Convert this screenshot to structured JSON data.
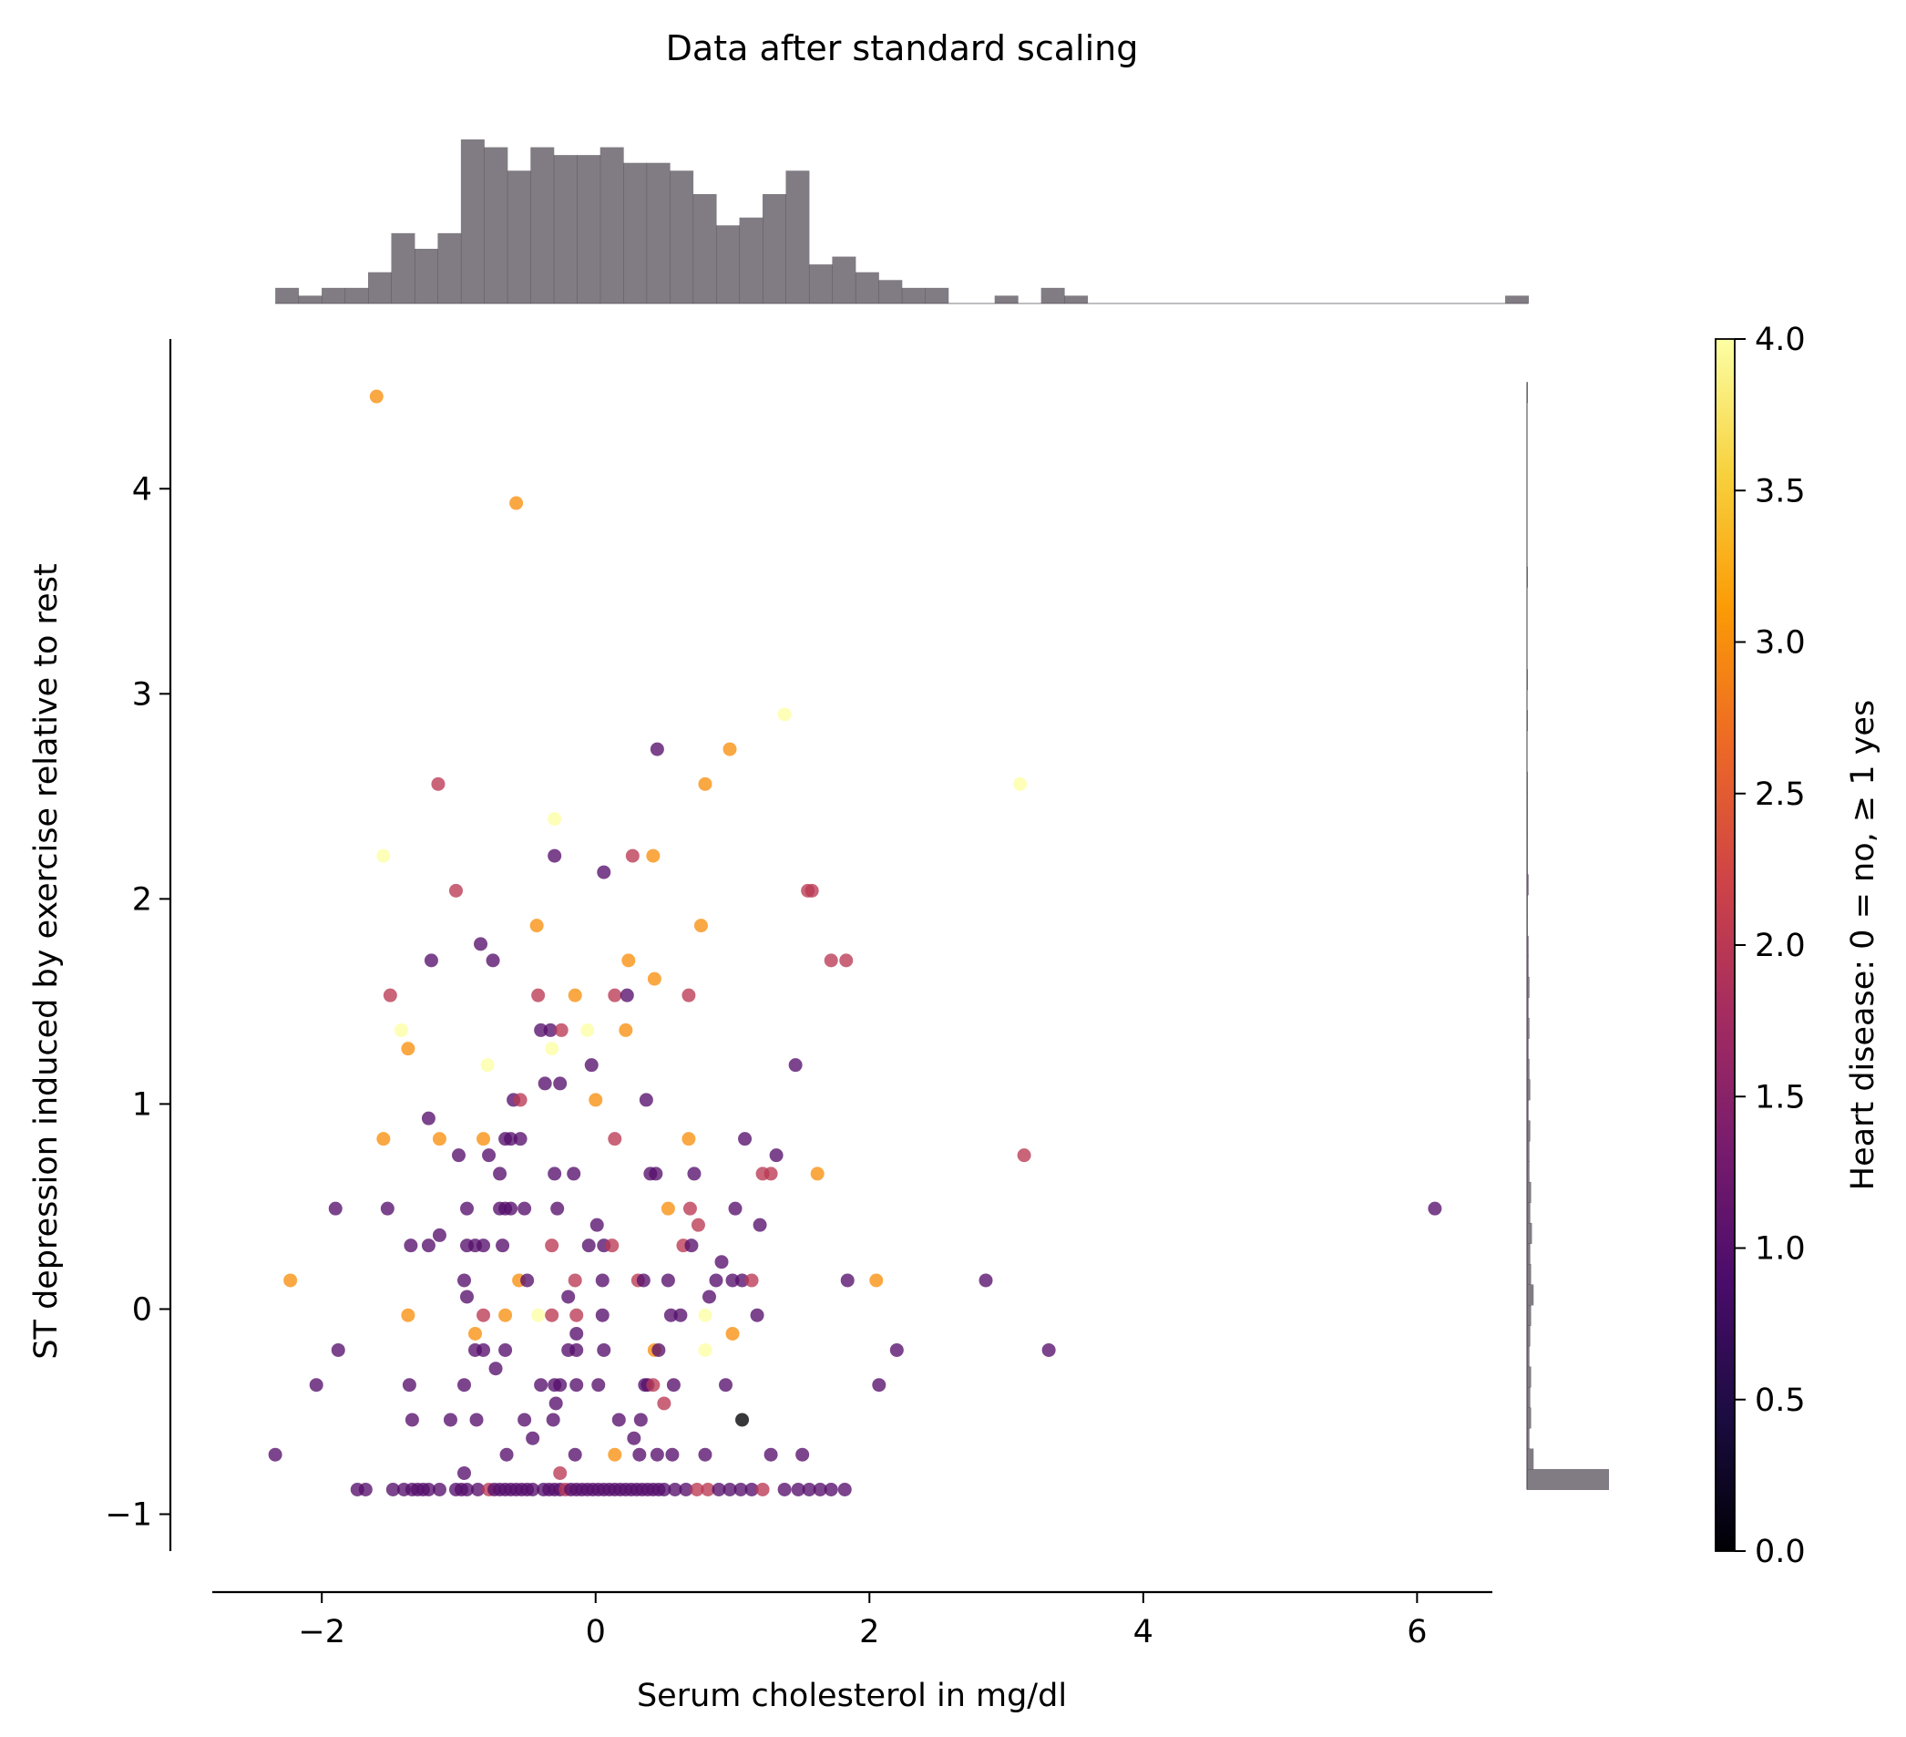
{
  "chart_data": {
    "type": "scatter",
    "title": "Data after standard scaling",
    "xlabel": "Serum cholesterol in mg/dl",
    "ylabel": "ST depression induced by exercise relative to rest",
    "colorbar_label": "Heart disease: 0 =  no,  ≥ 1 yes",
    "xlim": [
      -2.8,
      6.55
    ],
    "ylim": [
      -1.18,
      4.73
    ],
    "xticks": [
      -2,
      0,
      2,
      4,
      6
    ],
    "yticks": [
      -1,
      0,
      1,
      2,
      3,
      4
    ],
    "colorbar_ticks": [
      0.0,
      0.5,
      1.0,
      1.5,
      2.0,
      2.5,
      3.0,
      3.5,
      4.0
    ],
    "colorbar_range": [
      0,
      4
    ],
    "colormap": "inferno-like",
    "colormap_stops": [
      "#000004",
      "#1b0c41",
      "#4a0c6b",
      "#781c6d",
      "#a52c60",
      "#cf4446",
      "#ed6925",
      "#fb9b06",
      "#f7d13d",
      "#fcffa4"
    ],
    "point_alpha": 0.78,
    "marginal_color": "#4c454f",
    "grid": false,
    "points": [
      {
        "x": -1.6,
        "y": 4.45,
        "c": 3
      },
      {
        "x": -0.58,
        "y": 3.93,
        "c": 3
      },
      {
        "x": 1.38,
        "y": 2.9,
        "c": 4
      },
      {
        "x": 0.45,
        "y": 2.73,
        "c": 1
      },
      {
        "x": 0.98,
        "y": 2.73,
        "c": 3
      },
      {
        "x": 3.1,
        "y": 2.56,
        "c": 4
      },
      {
        "x": -1.15,
        "y": 2.56,
        "c": 2
      },
      {
        "x": 0.8,
        "y": 2.56,
        "c": 3
      },
      {
        "x": -0.3,
        "y": 2.39,
        "c": 4
      },
      {
        "x": -1.55,
        "y": 2.21,
        "c": 4
      },
      {
        "x": -0.3,
        "y": 2.21,
        "c": 1
      },
      {
        "x": 0.27,
        "y": 2.21,
        "c": 2
      },
      {
        "x": 0.42,
        "y": 2.21,
        "c": 3
      },
      {
        "x": 0.06,
        "y": 2.13,
        "c": 1
      },
      {
        "x": -1.02,
        "y": 2.04,
        "c": 2
      },
      {
        "x": 1.55,
        "y": 2.04,
        "c": 2
      },
      {
        "x": 1.58,
        "y": 2.04,
        "c": 2
      },
      {
        "x": -0.43,
        "y": 1.87,
        "c": 3
      },
      {
        "x": 0.77,
        "y": 1.87,
        "c": 3
      },
      {
        "x": -0.84,
        "y": 1.78,
        "c": 1
      },
      {
        "x": -1.2,
        "y": 1.7,
        "c": 1
      },
      {
        "x": -0.75,
        "y": 1.7,
        "c": 1
      },
      {
        "x": 0.24,
        "y": 1.7,
        "c": 3
      },
      {
        "x": 1.72,
        "y": 1.7,
        "c": 2
      },
      {
        "x": 1.83,
        "y": 1.7,
        "c": 2
      },
      {
        "x": 0.43,
        "y": 1.61,
        "c": 3
      },
      {
        "x": -1.5,
        "y": 1.53,
        "c": 2
      },
      {
        "x": -0.42,
        "y": 1.53,
        "c": 2
      },
      {
        "x": -0.15,
        "y": 1.53,
        "c": 3
      },
      {
        "x": 0.14,
        "y": 1.53,
        "c": 2
      },
      {
        "x": 0.23,
        "y": 1.53,
        "c": 1
      },
      {
        "x": 0.68,
        "y": 1.53,
        "c": 2
      },
      {
        "x": -1.42,
        "y": 1.36,
        "c": 4
      },
      {
        "x": -0.4,
        "y": 1.36,
        "c": 1
      },
      {
        "x": -0.33,
        "y": 1.36,
        "c": 1
      },
      {
        "x": -0.25,
        "y": 1.36,
        "c": 2
      },
      {
        "x": -0.06,
        "y": 1.36,
        "c": 4
      },
      {
        "x": 0.22,
        "y": 1.36,
        "c": 3
      },
      {
        "x": -1.37,
        "y": 1.27,
        "c": 3
      },
      {
        "x": -0.32,
        "y": 1.27,
        "c": 4
      },
      {
        "x": -0.79,
        "y": 1.19,
        "c": 4
      },
      {
        "x": -0.03,
        "y": 1.19,
        "c": 1
      },
      {
        "x": 1.46,
        "y": 1.19,
        "c": 1
      },
      {
        "x": -0.37,
        "y": 1.1,
        "c": 1
      },
      {
        "x": -0.26,
        "y": 1.1,
        "c": 1
      },
      {
        "x": -0.6,
        "y": 1.02,
        "c": 1
      },
      {
        "x": -0.55,
        "y": 1.02,
        "c": 2
      },
      {
        "x": 0.0,
        "y": 1.02,
        "c": 3
      },
      {
        "x": 0.37,
        "y": 1.02,
        "c": 1
      },
      {
        "x": -1.22,
        "y": 0.93,
        "c": 1
      },
      {
        "x": -1.55,
        "y": 0.83,
        "c": 3
      },
      {
        "x": -1.14,
        "y": 0.83,
        "c": 3
      },
      {
        "x": -0.82,
        "y": 0.83,
        "c": 3
      },
      {
        "x": -0.66,
        "y": 0.83,
        "c": 1
      },
      {
        "x": -0.62,
        "y": 0.83,
        "c": 1
      },
      {
        "x": -0.55,
        "y": 0.83,
        "c": 1
      },
      {
        "x": 0.14,
        "y": 0.83,
        "c": 2
      },
      {
        "x": 0.68,
        "y": 0.83,
        "c": 3
      },
      {
        "x": 1.09,
        "y": 0.83,
        "c": 1
      },
      {
        "x": -1.0,
        "y": 0.75,
        "c": 1
      },
      {
        "x": -0.78,
        "y": 0.75,
        "c": 1
      },
      {
        "x": 1.32,
        "y": 0.75,
        "c": 1
      },
      {
        "x": 3.13,
        "y": 0.75,
        "c": 2
      },
      {
        "x": -0.7,
        "y": 0.66,
        "c": 1
      },
      {
        "x": -0.3,
        "y": 0.66,
        "c": 1
      },
      {
        "x": -0.16,
        "y": 0.66,
        "c": 1
      },
      {
        "x": 0.4,
        "y": 0.66,
        "c": 1
      },
      {
        "x": 0.44,
        "y": 0.66,
        "c": 1
      },
      {
        "x": 0.72,
        "y": 0.66,
        "c": 1
      },
      {
        "x": 1.22,
        "y": 0.66,
        "c": 2
      },
      {
        "x": 1.28,
        "y": 0.66,
        "c": 2
      },
      {
        "x": 1.62,
        "y": 0.66,
        "c": 3
      },
      {
        "x": -1.9,
        "y": 0.49,
        "c": 1
      },
      {
        "x": -1.52,
        "y": 0.49,
        "c": 1
      },
      {
        "x": -0.94,
        "y": 0.49,
        "c": 1
      },
      {
        "x": -0.7,
        "y": 0.49,
        "c": 1
      },
      {
        "x": -0.66,
        "y": 0.49,
        "c": 1
      },
      {
        "x": -0.62,
        "y": 0.49,
        "c": 1
      },
      {
        "x": -0.52,
        "y": 0.49,
        "c": 1
      },
      {
        "x": -0.28,
        "y": 0.49,
        "c": 1
      },
      {
        "x": 0.53,
        "y": 0.49,
        "c": 3
      },
      {
        "x": 0.69,
        "y": 0.49,
        "c": 2
      },
      {
        "x": 1.02,
        "y": 0.49,
        "c": 1
      },
      {
        "x": 6.13,
        "y": 0.49,
        "c": 1
      },
      {
        "x": 0.01,
        "y": 0.41,
        "c": 1
      },
      {
        "x": 0.75,
        "y": 0.41,
        "c": 2
      },
      {
        "x": -1.14,
        "y": 0.36,
        "c": 1
      },
      {
        "x": -1.22,
        "y": 0.31,
        "c": 1
      },
      {
        "x": -1.35,
        "y": 0.31,
        "c": 1
      },
      {
        "x": -0.94,
        "y": 0.31,
        "c": 1
      },
      {
        "x": -0.88,
        "y": 0.31,
        "c": 1
      },
      {
        "x": -0.82,
        "y": 0.31,
        "c": 1
      },
      {
        "x": -0.68,
        "y": 0.31,
        "c": 1
      },
      {
        "x": -0.32,
        "y": 0.31,
        "c": 2
      },
      {
        "x": -0.05,
        "y": 0.31,
        "c": 1
      },
      {
        "x": 0.06,
        "y": 0.31,
        "c": 1
      },
      {
        "x": 0.12,
        "y": 0.31,
        "c": 2
      },
      {
        "x": 0.64,
        "y": 0.31,
        "c": 2
      },
      {
        "x": 0.7,
        "y": 0.31,
        "c": 1
      },
      {
        "x": 1.2,
        "y": 0.41,
        "c": 1
      },
      {
        "x": 0.92,
        "y": 0.23,
        "c": 1
      },
      {
        "x": -2.23,
        "y": 0.14,
        "c": 3
      },
      {
        "x": -0.96,
        "y": 0.14,
        "c": 1
      },
      {
        "x": -0.56,
        "y": 0.14,
        "c": 3
      },
      {
        "x": -0.5,
        "y": 0.14,
        "c": 1
      },
      {
        "x": -0.15,
        "y": 0.14,
        "c": 2
      },
      {
        "x": 0.05,
        "y": 0.14,
        "c": 1
      },
      {
        "x": 0.31,
        "y": 0.14,
        "c": 2
      },
      {
        "x": 0.35,
        "y": 0.14,
        "c": 1
      },
      {
        "x": 0.53,
        "y": 0.14,
        "c": 1
      },
      {
        "x": 0.88,
        "y": 0.14,
        "c": 1
      },
      {
        "x": 1.0,
        "y": 0.14,
        "c": 1
      },
      {
        "x": 1.07,
        "y": 0.14,
        "c": 1
      },
      {
        "x": 1.14,
        "y": 0.14,
        "c": 2
      },
      {
        "x": 1.84,
        "y": 0.14,
        "c": 1
      },
      {
        "x": 2.05,
        "y": 0.14,
        "c": 3
      },
      {
        "x": 2.85,
        "y": 0.14,
        "c": 1
      },
      {
        "x": -0.94,
        "y": 0.06,
        "c": 1
      },
      {
        "x": -0.2,
        "y": 0.06,
        "c": 1
      },
      {
        "x": 0.83,
        "y": 0.06,
        "c": 1
      },
      {
        "x": -1.37,
        "y": -0.03,
        "c": 3
      },
      {
        "x": -0.82,
        "y": -0.03,
        "c": 2
      },
      {
        "x": -0.66,
        "y": -0.03,
        "c": 3
      },
      {
        "x": -0.42,
        "y": -0.03,
        "c": 4
      },
      {
        "x": -0.32,
        "y": -0.03,
        "c": 2
      },
      {
        "x": -0.14,
        "y": -0.03,
        "c": 2
      },
      {
        "x": 0.05,
        "y": -0.03,
        "c": 1
      },
      {
        "x": 0.55,
        "y": -0.03,
        "c": 1
      },
      {
        "x": 0.62,
        "y": -0.03,
        "c": 1
      },
      {
        "x": 0.8,
        "y": -0.03,
        "c": 4
      },
      {
        "x": 1.18,
        "y": -0.03,
        "c": 1
      },
      {
        "x": -0.88,
        "y": -0.12,
        "c": 3
      },
      {
        "x": -0.14,
        "y": -0.12,
        "c": 1
      },
      {
        "x": 1.0,
        "y": -0.12,
        "c": 3
      },
      {
        "x": -1.88,
        "y": -0.2,
        "c": 1
      },
      {
        "x": -0.88,
        "y": -0.2,
        "c": 1
      },
      {
        "x": -0.82,
        "y": -0.2,
        "c": 1
      },
      {
        "x": -0.66,
        "y": -0.2,
        "c": 1
      },
      {
        "x": -0.2,
        "y": -0.2,
        "c": 1
      },
      {
        "x": -0.14,
        "y": -0.2,
        "c": 1
      },
      {
        "x": 0.06,
        "y": -0.2,
        "c": 1
      },
      {
        "x": 0.43,
        "y": -0.2,
        "c": 3
      },
      {
        "x": 0.46,
        "y": -0.2,
        "c": 1
      },
      {
        "x": 0.8,
        "y": -0.2,
        "c": 4
      },
      {
        "x": 2.2,
        "y": -0.2,
        "c": 1
      },
      {
        "x": 3.31,
        "y": -0.2,
        "c": 1
      },
      {
        "x": -0.73,
        "y": -0.29,
        "c": 1
      },
      {
        "x": -2.04,
        "y": -0.37,
        "c": 1
      },
      {
        "x": -1.36,
        "y": -0.37,
        "c": 1
      },
      {
        "x": -0.96,
        "y": -0.37,
        "c": 1
      },
      {
        "x": -0.4,
        "y": -0.37,
        "c": 1
      },
      {
        "x": -0.3,
        "y": -0.37,
        "c": 1
      },
      {
        "x": -0.26,
        "y": -0.37,
        "c": 1
      },
      {
        "x": -0.14,
        "y": -0.37,
        "c": 1
      },
      {
        "x": 0.02,
        "y": -0.37,
        "c": 1
      },
      {
        "x": 0.36,
        "y": -0.37,
        "c": 1
      },
      {
        "x": 0.38,
        "y": -0.37,
        "c": 1
      },
      {
        "x": 0.42,
        "y": -0.37,
        "c": 2
      },
      {
        "x": 0.57,
        "y": -0.37,
        "c": 1
      },
      {
        "x": 0.95,
        "y": -0.37,
        "c": 1
      },
      {
        "x": 2.07,
        "y": -0.37,
        "c": 1
      },
      {
        "x": 0.5,
        "y": -0.46,
        "c": 2
      },
      {
        "x": -0.29,
        "y": -0.46,
        "c": 1
      },
      {
        "x": -1.34,
        "y": -0.54,
        "c": 1
      },
      {
        "x": -1.06,
        "y": -0.54,
        "c": 1
      },
      {
        "x": -0.87,
        "y": -0.54,
        "c": 1
      },
      {
        "x": -0.52,
        "y": -0.54,
        "c": 1
      },
      {
        "x": -0.31,
        "y": -0.54,
        "c": 1
      },
      {
        "x": 0.17,
        "y": -0.54,
        "c": 1
      },
      {
        "x": 0.33,
        "y": -0.54,
        "c": 1
      },
      {
        "x": 1.07,
        "y": -0.54,
        "c": 0
      },
      {
        "x": -0.46,
        "y": -0.63,
        "c": 1
      },
      {
        "x": 0.28,
        "y": -0.63,
        "c": 1
      },
      {
        "x": -0.65,
        "y": -0.71,
        "c": 1
      },
      {
        "x": -0.15,
        "y": -0.71,
        "c": 1
      },
      {
        "x": 0.14,
        "y": -0.71,
        "c": 3
      },
      {
        "x": 0.32,
        "y": -0.71,
        "c": 1
      },
      {
        "x": 0.45,
        "y": -0.71,
        "c": 1
      },
      {
        "x": 0.56,
        "y": -0.71,
        "c": 1
      },
      {
        "x": 0.8,
        "y": -0.71,
        "c": 1
      },
      {
        "x": 1.28,
        "y": -0.71,
        "c": 1
      },
      {
        "x": 1.51,
        "y": -0.71,
        "c": 1
      },
      {
        "x": -2.34,
        "y": -0.71,
        "c": 1
      },
      {
        "x": -0.96,
        "y": -0.8,
        "c": 1
      },
      {
        "x": -0.26,
        "y": -0.8,
        "c": 2
      },
      {
        "x": -1.74,
        "y": -0.88,
        "c": 1
      },
      {
        "x": -1.68,
        "y": -0.88,
        "c": 1
      },
      {
        "x": -1.48,
        "y": -0.88,
        "c": 1
      },
      {
        "x": -1.4,
        "y": -0.88,
        "c": 1
      },
      {
        "x": -1.34,
        "y": -0.88,
        "c": 1
      },
      {
        "x": -1.3,
        "y": -0.88,
        "c": 1
      },
      {
        "x": -1.26,
        "y": -0.88,
        "c": 1
      },
      {
        "x": -1.22,
        "y": -0.88,
        "c": 1
      },
      {
        "x": -1.14,
        "y": -0.88,
        "c": 1
      },
      {
        "x": -1.02,
        "y": -0.88,
        "c": 1
      },
      {
        "x": -0.98,
        "y": -0.88,
        "c": 1
      },
      {
        "x": -0.94,
        "y": -0.88,
        "c": 1
      },
      {
        "x": -0.86,
        "y": -0.88,
        "c": 1
      },
      {
        "x": -0.78,
        "y": -0.88,
        "c": 2
      },
      {
        "x": -0.74,
        "y": -0.88,
        "c": 1
      },
      {
        "x": -0.7,
        "y": -0.88,
        "c": 1
      },
      {
        "x": -0.66,
        "y": -0.88,
        "c": 1
      },
      {
        "x": -0.62,
        "y": -0.88,
        "c": 1
      },
      {
        "x": -0.58,
        "y": -0.88,
        "c": 1
      },
      {
        "x": -0.54,
        "y": -0.88,
        "c": 1
      },
      {
        "x": -0.5,
        "y": -0.88,
        "c": 1
      },
      {
        "x": -0.46,
        "y": -0.88,
        "c": 1
      },
      {
        "x": -0.38,
        "y": -0.88,
        "c": 1
      },
      {
        "x": -0.34,
        "y": -0.88,
        "c": 1
      },
      {
        "x": -0.3,
        "y": -0.88,
        "c": 1
      },
      {
        "x": -0.26,
        "y": -0.88,
        "c": 1
      },
      {
        "x": -0.22,
        "y": -0.88,
        "c": 2
      },
      {
        "x": -0.18,
        "y": -0.88,
        "c": 1
      },
      {
        "x": -0.14,
        "y": -0.88,
        "c": 1
      },
      {
        "x": -0.1,
        "y": -0.88,
        "c": 1
      },
      {
        "x": -0.06,
        "y": -0.88,
        "c": 1
      },
      {
        "x": -0.02,
        "y": -0.88,
        "c": 1
      },
      {
        "x": 0.02,
        "y": -0.88,
        "c": 1
      },
      {
        "x": 0.06,
        "y": -0.88,
        "c": 1
      },
      {
        "x": 0.1,
        "y": -0.88,
        "c": 1
      },
      {
        "x": 0.14,
        "y": -0.88,
        "c": 1
      },
      {
        "x": 0.18,
        "y": -0.88,
        "c": 1
      },
      {
        "x": 0.22,
        "y": -0.88,
        "c": 1
      },
      {
        "x": 0.26,
        "y": -0.88,
        "c": 1
      },
      {
        "x": 0.3,
        "y": -0.88,
        "c": 1
      },
      {
        "x": 0.34,
        "y": -0.88,
        "c": 1
      },
      {
        "x": 0.38,
        "y": -0.88,
        "c": 1
      },
      {
        "x": 0.42,
        "y": -0.88,
        "c": 1
      },
      {
        "x": 0.46,
        "y": -0.88,
        "c": 1
      },
      {
        "x": 0.5,
        "y": -0.88,
        "c": 1
      },
      {
        "x": 0.58,
        "y": -0.88,
        "c": 1
      },
      {
        "x": 0.66,
        "y": -0.88,
        "c": 1
      },
      {
        "x": 0.74,
        "y": -0.88,
        "c": 2
      },
      {
        "x": 0.82,
        "y": -0.88,
        "c": 2
      },
      {
        "x": 0.9,
        "y": -0.88,
        "c": 1
      },
      {
        "x": 0.98,
        "y": -0.88,
        "c": 1
      },
      {
        "x": 1.06,
        "y": -0.88,
        "c": 1
      },
      {
        "x": 1.14,
        "y": -0.88,
        "c": 1
      },
      {
        "x": 1.22,
        "y": -0.88,
        "c": 2
      },
      {
        "x": 1.38,
        "y": -0.88,
        "c": 1
      },
      {
        "x": 1.48,
        "y": -0.88,
        "c": 1
      },
      {
        "x": 1.56,
        "y": -0.88,
        "c": 1
      },
      {
        "x": 1.64,
        "y": -0.88,
        "c": 1
      },
      {
        "x": 1.72,
        "y": -0.88,
        "c": 1
      },
      {
        "x": 1.82,
        "y": -0.88,
        "c": 1
      }
    ],
    "x_histogram": {
      "bin_start": -2.34,
      "bin_width": 0.1695,
      "counts": [
        2,
        1,
        2,
        2,
        4,
        9,
        7,
        9,
        21,
        20,
        17,
        20,
        19,
        19,
        20,
        18,
        18,
        17,
        14,
        10,
        11,
        14,
        17,
        5,
        6,
        4,
        3,
        2,
        2,
        0,
        0,
        1,
        0,
        2,
        1,
        0,
        0,
        0,
        0,
        0,
        0,
        0,
        0,
        0,
        0,
        0,
        0,
        0,
        0,
        0,
        0,
        0,
        0,
        1
      ]
    },
    "y_histogram": {
      "bin_start": -0.88,
      "bin_width": 0.1,
      "counts": [
        99,
        8,
        3,
        5,
        4,
        5,
        3,
        4,
        5,
        8,
        5,
        4,
        6,
        4,
        5,
        3,
        3,
        4,
        2,
        4,
        3,
        2,
        3,
        2,
        3,
        2,
        2,
        1,
        1,
        2,
        1,
        1,
        1,
        1,
        1,
        0,
        0,
        1,
        0,
        1,
        0,
        0,
        0,
        0,
        1,
        0,
        0,
        0,
        0,
        0,
        0,
        0,
        0,
        1
      ]
    }
  }
}
